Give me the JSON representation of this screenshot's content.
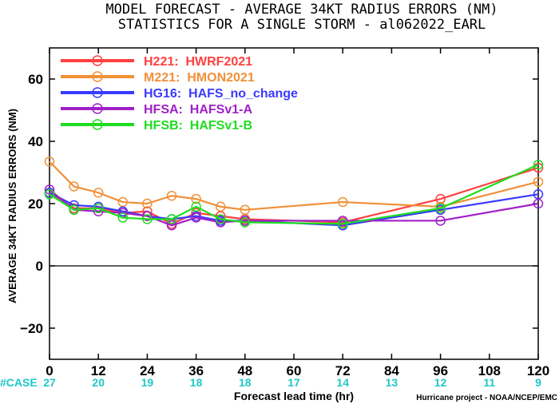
{
  "title_line1": "MODEL FORECAST - AVERAGE 34KT RADIUS ERRORS (NM)",
  "title_line2": "STATISTICS FOR A SINGLE STORM - al062022_EARL",
  "credit": "Hurricane project - NOAA/NCEP/EMC",
  "case_label": "#CASE",
  "case_counts": [
    "27",
    "20",
    "19",
    "18",
    "18",
    "17",
    "14",
    "13",
    "12",
    "11",
    "9"
  ],
  "colors": {
    "zero_line": "#000000",
    "case_text": "#1ec8c8"
  },
  "chart_data": {
    "type": "line",
    "xlabel": "Forecast lead time (hr)",
    "ylabel": "AVERAGE 34KT RADIUS ERRORS (NM)",
    "xlim": [
      0,
      120
    ],
    "ylim": [
      -30,
      70
    ],
    "xticks": [
      0,
      12,
      24,
      36,
      48,
      60,
      72,
      84,
      96,
      108,
      120
    ],
    "yticks": [
      -20,
      0,
      20,
      40,
      60
    ],
    "grid": false,
    "legend_position": "top-left",
    "series": [
      {
        "name": "H221:  HWRF2021",
        "color": "#ff4040",
        "x": [
          0,
          6,
          12,
          18,
          24,
          30,
          36,
          42,
          48,
          72,
          96,
          120
        ],
        "y": [
          23.5,
          18.5,
          18.5,
          17,
          17.5,
          13.5,
          17,
          16,
          15,
          14,
          21.5,
          31.5
        ]
      },
      {
        "name": "M221:  HMON2021",
        "color": "#f09038",
        "x": [
          0,
          6,
          12,
          18,
          24,
          30,
          36,
          42,
          48,
          72,
          96,
          120
        ],
        "y": [
          33.5,
          25.5,
          23.5,
          20.5,
          20,
          22.5,
          21.5,
          19,
          18,
          20.5,
          19,
          27
        ]
      },
      {
        "name": "HG16:  HAFS_no_change",
        "color": "#3a3aff",
        "x": [
          0,
          6,
          12,
          18,
          24,
          30,
          36,
          42,
          48,
          72,
          96,
          120
        ],
        "y": [
          23.5,
          19.5,
          19,
          17.5,
          16,
          15,
          16,
          14.5,
          14.5,
          13,
          18,
          23
        ]
      },
      {
        "name": "HFSA:  HAFSv1-A",
        "color": "#a020c8",
        "x": [
          0,
          6,
          12,
          18,
          24,
          30,
          36,
          42,
          48,
          72,
          96,
          120
        ],
        "y": [
          24.5,
          18,
          17.5,
          17,
          16,
          13,
          15.5,
          14,
          14.5,
          14.5,
          14.5,
          20
        ]
      },
      {
        "name": "HFSB:  HAFSv1-B",
        "color": "#20dc20",
        "x": [
          0,
          6,
          12,
          18,
          24,
          30,
          36,
          42,
          48,
          72,
          96,
          120
        ],
        "y": [
          23,
          18,
          18.5,
          15.5,
          15,
          15,
          19,
          15,
          14,
          13.5,
          18.5,
          32.5
        ]
      }
    ]
  }
}
